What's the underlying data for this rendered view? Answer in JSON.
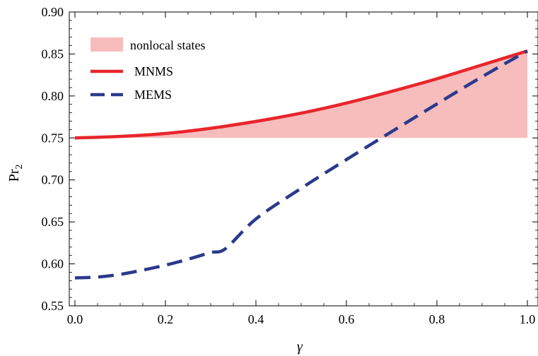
{
  "chart_data": {
    "type": "line",
    "title": "",
    "xlabel": "γ",
    "ylabel": "Pr",
    "ylabel_subscript": "2",
    "xlim": [
      0,
      1
    ],
    "ylim": [
      0.55,
      0.9
    ],
    "x_ticks": [
      "0.0",
      "0.2",
      "0.4",
      "0.6",
      "0.8",
      "1.0"
    ],
    "y_ticks": [
      "0.55",
      "0.60",
      "0.65",
      "0.70",
      "0.75",
      "0.80",
      "0.85",
      "0.90"
    ],
    "x_tick_values": [
      0,
      0.2,
      0.4,
      0.6,
      0.8,
      1.0
    ],
    "y_tick_values": [
      0.55,
      0.6,
      0.65,
      0.7,
      0.75,
      0.8,
      0.85,
      0.9
    ],
    "grid": false,
    "legend_position": "top-left",
    "area": {
      "name": "nonlocal states",
      "color": "#f7bcbc",
      "baseline": 0.75,
      "x": [
        0,
        0.1,
        0.2,
        0.3,
        0.4,
        0.5,
        0.6,
        0.7,
        0.8,
        0.9,
        1.0
      ],
      "upper": [
        0.75,
        0.7518,
        0.7571,
        0.7658,
        0.7776,
        0.7922,
        0.809,
        0.8274,
        0.8471,
        0.867,
        0.8536
      ]
    },
    "series": [
      {
        "name": "MNMS",
        "style": "solid",
        "color": "#e8262c",
        "x": [
          0,
          0.1,
          0.2,
          0.3,
          0.4,
          0.5,
          0.6,
          0.7,
          0.8,
          0.9,
          1.0
        ],
        "y": [
          0.75,
          0.7518,
          0.7553,
          0.7615,
          0.7697,
          0.7795,
          0.7915,
          0.8055,
          0.8205,
          0.837,
          0.8536
        ]
      },
      {
        "name": "MEMS",
        "style": "dashed",
        "color": "#2b3a8c",
        "x": [
          0,
          0.05,
          0.1,
          0.15,
          0.2,
          0.25,
          0.3,
          0.333,
          0.4,
          0.5,
          0.6,
          0.7,
          0.8,
          0.9,
          1.0
        ],
        "y": [
          0.5833,
          0.5843,
          0.5875,
          0.5926,
          0.5985,
          0.6055,
          0.6135,
          0.6182,
          0.6535,
          0.69,
          0.7242,
          0.7575,
          0.7905,
          0.823,
          0.8536
        ]
      }
    ]
  }
}
